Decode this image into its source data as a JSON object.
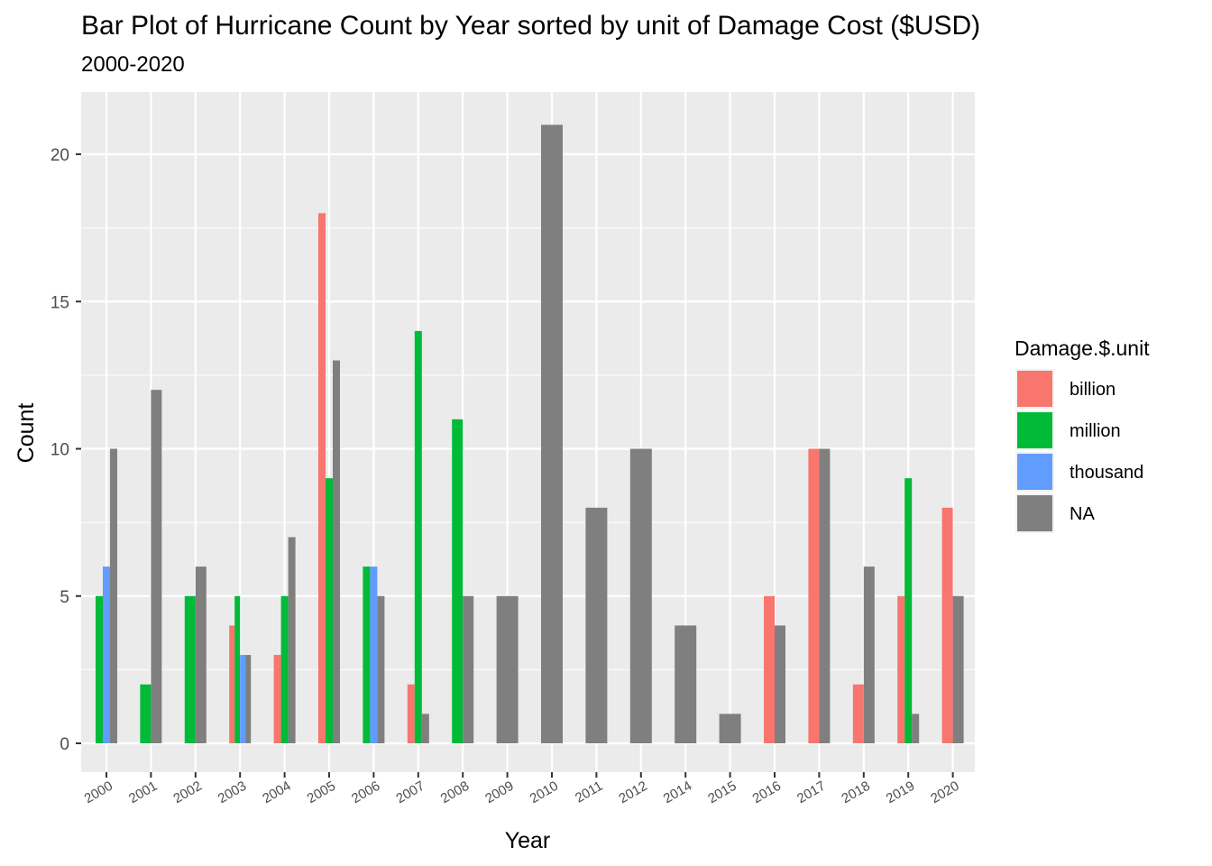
{
  "chart_data": {
    "type": "bar",
    "title": "Bar Plot of Hurricane Count by Year sorted by unit of Damage Cost ($USD)",
    "subtitle": "2000-2020",
    "xlabel": "Year",
    "ylabel": "Count",
    "ylim": [
      0,
      21
    ],
    "yticks": [
      0,
      5,
      10,
      15,
      20
    ],
    "grid": true,
    "legend": {
      "title": "Damage.$.unit",
      "position": "right",
      "entries": [
        {
          "name": "billion",
          "color": "#F8766D"
        },
        {
          "name": "million",
          "color": "#00BA38"
        },
        {
          "name": "thousand",
          "color": "#619CFF"
        },
        {
          "name": "NA",
          "color": "#7F7F7F"
        }
      ]
    },
    "categories": [
      "2000",
      "2001",
      "2002",
      "2003",
      "2004",
      "2005",
      "2006",
      "2007",
      "2008",
      "2009",
      "2010",
      "2011",
      "2012",
      "2014",
      "2015",
      "2016",
      "2017",
      "2018",
      "2019",
      "2020"
    ],
    "bars": [
      {
        "year": "2000",
        "segments": [
          {
            "unit": "million",
            "value": 5
          },
          {
            "unit": "thousand",
            "value": 6
          },
          {
            "unit": "NA",
            "value": 10
          }
        ]
      },
      {
        "year": "2001",
        "segments": [
          {
            "unit": "million",
            "value": 2
          },
          {
            "unit": "NA",
            "value": 12
          }
        ]
      },
      {
        "year": "2002",
        "segments": [
          {
            "unit": "million",
            "value": 5
          },
          {
            "unit": "NA",
            "value": 6
          }
        ]
      },
      {
        "year": "2003",
        "segments": [
          {
            "unit": "billion",
            "value": 4
          },
          {
            "unit": "million",
            "value": 5
          },
          {
            "unit": "thousand",
            "value": 3
          },
          {
            "unit": "NA",
            "value": 3
          }
        ]
      },
      {
        "year": "2004",
        "segments": [
          {
            "unit": "billion",
            "value": 3
          },
          {
            "unit": "million",
            "value": 5
          },
          {
            "unit": "NA",
            "value": 7
          }
        ]
      },
      {
        "year": "2005",
        "segments": [
          {
            "unit": "billion",
            "value": 18
          },
          {
            "unit": "million",
            "value": 9
          },
          {
            "unit": "NA",
            "value": 13
          }
        ]
      },
      {
        "year": "2006",
        "segments": [
          {
            "unit": "million",
            "value": 6
          },
          {
            "unit": "thousand",
            "value": 6
          },
          {
            "unit": "NA",
            "value": 5
          }
        ]
      },
      {
        "year": "2007",
        "segments": [
          {
            "unit": "billion",
            "value": 2
          },
          {
            "unit": "million",
            "value": 14
          },
          {
            "unit": "NA",
            "value": 1
          }
        ]
      },
      {
        "year": "2008",
        "segments": [
          {
            "unit": "million",
            "value": 11
          },
          {
            "unit": "NA",
            "value": 5
          }
        ]
      },
      {
        "year": "2009",
        "segments": [
          {
            "unit": "NA",
            "value": 5
          }
        ]
      },
      {
        "year": "2010",
        "segments": [
          {
            "unit": "NA",
            "value": 21
          }
        ]
      },
      {
        "year": "2011",
        "segments": [
          {
            "unit": "NA",
            "value": 8
          }
        ]
      },
      {
        "year": "2012",
        "segments": [
          {
            "unit": "NA",
            "value": 10
          }
        ]
      },
      {
        "year": "2014",
        "segments": [
          {
            "unit": "NA",
            "value": 4
          }
        ]
      },
      {
        "year": "2015",
        "segments": [
          {
            "unit": "NA",
            "value": 1
          }
        ]
      },
      {
        "year": "2016",
        "segments": [
          {
            "unit": "billion",
            "value": 5
          },
          {
            "unit": "NA",
            "value": 4
          }
        ]
      },
      {
        "year": "2017",
        "segments": [
          {
            "unit": "billion",
            "value": 10
          },
          {
            "unit": "NA",
            "value": 10
          }
        ]
      },
      {
        "year": "2018",
        "segments": [
          {
            "unit": "billion",
            "value": 2
          },
          {
            "unit": "NA",
            "value": 6
          }
        ]
      },
      {
        "year": "2019",
        "segments": [
          {
            "unit": "billion",
            "value": 5
          },
          {
            "unit": "million",
            "value": 9
          },
          {
            "unit": "NA",
            "value": 1
          }
        ]
      },
      {
        "year": "2020",
        "segments": [
          {
            "unit": "billion",
            "value": 8
          },
          {
            "unit": "NA",
            "value": 5
          }
        ]
      }
    ]
  }
}
